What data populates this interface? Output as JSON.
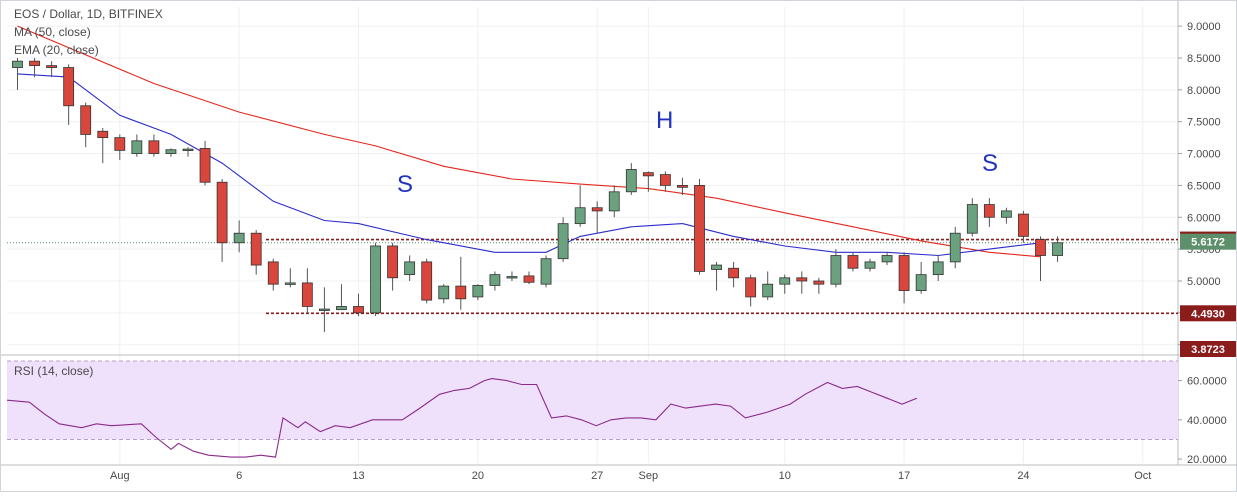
{
  "chart_data": {
    "type": "candlestick",
    "title": "EOS / Dollar, 1D, BITFINEX",
    "indicators": [
      "MA (50, close)",
      "EMA (20, close)"
    ],
    "rsi_label": "RSI (14, close)",
    "x_ticks": [
      "Aug",
      "6",
      "13",
      "20",
      "27",
      "Sep",
      "10",
      "17",
      "24",
      "Oct"
    ],
    "y_ticks": [
      "9.0000",
      "8.5000",
      "8.0000",
      "7.5000",
      "7.0000",
      "6.5000",
      "6.0000",
      "5.5000",
      "5.0000",
      "4.5000",
      "4.0000"
    ],
    "ylim": [
      3.87,
      9.3
    ],
    "rsi_ticks": [
      "60.0000",
      "40.0000",
      "20.0000"
    ],
    "rsi_lim": [
      18,
      71
    ],
    "rsi_band": [
      30,
      70
    ],
    "price_labels": [
      {
        "text": "5.6500",
        "value": 5.65,
        "color": "#8b1c1c"
      },
      {
        "text": "5.6172",
        "value": 5.6172,
        "color": "#5d8f6a"
      },
      {
        "text": "4.4930",
        "value": 4.493,
        "color": "#8b1c1c"
      },
      {
        "text": "3.8723",
        "value": 3.8723,
        "color": "#8b1c1c"
      }
    ],
    "support_levels": [
      5.65,
      4.493
    ],
    "pattern_labels": [
      "S",
      "H",
      "S"
    ],
    "candles": [
      {
        "d": "Jul 27",
        "o": 8.35,
        "h": 8.5,
        "l": 8.0,
        "c": 8.45
      },
      {
        "d": "Jul 28",
        "o": 8.45,
        "h": 8.5,
        "l": 8.2,
        "c": 8.38
      },
      {
        "d": "Jul 29",
        "o": 8.38,
        "h": 8.45,
        "l": 8.2,
        "c": 8.35
      },
      {
        "d": "Jul 30",
        "o": 8.35,
        "h": 8.4,
        "l": 7.45,
        "c": 7.75
      },
      {
        "d": "Jul 31",
        "o": 7.75,
        "h": 7.8,
        "l": 7.1,
        "c": 7.3
      },
      {
        "d": "Aug 1",
        "o": 7.35,
        "h": 7.4,
        "l": 6.85,
        "c": 7.25
      },
      {
        "d": "Aug 2",
        "o": 7.25,
        "h": 7.3,
        "l": 6.9,
        "c": 7.05
      },
      {
        "d": "Aug 3",
        "o": 7.0,
        "h": 7.3,
        "l": 6.95,
        "c": 7.2
      },
      {
        "d": "Aug 4",
        "o": 7.2,
        "h": 7.3,
        "l": 6.95,
        "c": 7.0
      },
      {
        "d": "Aug 5",
        "o": 7.0,
        "h": 7.08,
        "l": 6.95,
        "c": 7.06
      },
      {
        "d": "Aug 6",
        "o": 7.05,
        "h": 7.1,
        "l": 6.95,
        "c": 7.07
      },
      {
        "d": "Aug 7",
        "o": 7.08,
        "h": 7.2,
        "l": 6.5,
        "c": 6.55
      },
      {
        "d": "Aug 8",
        "o": 6.55,
        "h": 6.6,
        "l": 5.3,
        "c": 5.6
      },
      {
        "d": "Aug 9",
        "o": 5.6,
        "h": 5.95,
        "l": 5.45,
        "c": 5.75
      },
      {
        "d": "Aug 10",
        "o": 5.75,
        "h": 5.8,
        "l": 5.1,
        "c": 5.25
      },
      {
        "d": "Aug 11",
        "o": 5.3,
        "h": 5.35,
        "l": 4.85,
        "c": 4.95
      },
      {
        "d": "Aug 12",
        "o": 4.97,
        "h": 5.2,
        "l": 4.9,
        "c": 4.97
      },
      {
        "d": "Aug 13",
        "o": 4.97,
        "h": 5.2,
        "l": 4.5,
        "c": 4.6
      },
      {
        "d": "Aug 14",
        "o": 4.55,
        "h": 4.9,
        "l": 4.2,
        "c": 4.56
      },
      {
        "d": "Aug 15",
        "o": 4.55,
        "h": 4.95,
        "l": 4.55,
        "c": 4.6
      },
      {
        "d": "Aug 16",
        "o": 4.6,
        "h": 4.8,
        "l": 4.45,
        "c": 4.5
      },
      {
        "d": "Aug 17",
        "o": 4.5,
        "h": 5.6,
        "l": 4.45,
        "c": 5.55
      },
      {
        "d": "Aug 18",
        "o": 5.55,
        "h": 5.6,
        "l": 4.85,
        "c": 5.05
      },
      {
        "d": "Aug 19",
        "o": 5.1,
        "h": 5.4,
        "l": 5.0,
        "c": 5.3
      },
      {
        "d": "Aug 20",
        "o": 5.3,
        "h": 5.35,
        "l": 4.65,
        "c": 4.7
      },
      {
        "d": "Aug 21",
        "o": 4.72,
        "h": 4.95,
        "l": 4.65,
        "c": 4.92
      },
      {
        "d": "Aug 22",
        "o": 4.92,
        "h": 5.38,
        "l": 4.55,
        "c": 4.72
      },
      {
        "d": "Aug 23",
        "o": 4.75,
        "h": 4.95,
        "l": 4.7,
        "c": 4.93
      },
      {
        "d": "Aug 24",
        "o": 4.93,
        "h": 5.15,
        "l": 4.85,
        "c": 5.1
      },
      {
        "d": "Aug 25",
        "o": 5.05,
        "h": 5.15,
        "l": 5.0,
        "c": 5.07
      },
      {
        "d": "Aug 26",
        "o": 5.08,
        "h": 5.15,
        "l": 4.95,
        "c": 4.98
      },
      {
        "d": "Aug 27",
        "o": 4.95,
        "h": 5.4,
        "l": 4.9,
        "c": 5.35
      },
      {
        "d": "Aug 28",
        "o": 5.35,
        "h": 6.0,
        "l": 5.3,
        "c": 5.9
      },
      {
        "d": "Aug 29",
        "o": 5.9,
        "h": 6.5,
        "l": 5.85,
        "c": 6.15
      },
      {
        "d": "Aug 30",
        "o": 6.15,
        "h": 6.25,
        "l": 5.75,
        "c": 6.1
      },
      {
        "d": "Aug 31",
        "o": 6.1,
        "h": 6.5,
        "l": 6.0,
        "c": 6.4
      },
      {
        "d": "Sep 1",
        "o": 6.4,
        "h": 6.85,
        "l": 6.35,
        "c": 6.75
      },
      {
        "d": "Sep 2",
        "o": 6.7,
        "h": 6.72,
        "l": 6.4,
        "c": 6.65
      },
      {
        "d": "Sep 3",
        "o": 6.67,
        "h": 6.72,
        "l": 6.4,
        "c": 6.5
      },
      {
        "d": "Sep 4",
        "o": 6.5,
        "h": 6.62,
        "l": 6.35,
        "c": 6.47
      },
      {
        "d": "Sep 5",
        "o": 6.5,
        "h": 6.6,
        "l": 5.1,
        "c": 5.15
      },
      {
        "d": "Sep 6",
        "o": 5.18,
        "h": 5.3,
        "l": 4.85,
        "c": 5.25
      },
      {
        "d": "Sep 7",
        "o": 5.2,
        "h": 5.3,
        "l": 4.9,
        "c": 5.05
      },
      {
        "d": "Sep 8",
        "o": 5.05,
        "h": 5.1,
        "l": 4.6,
        "c": 4.75
      },
      {
        "d": "Sep 9",
        "o": 4.75,
        "h": 5.15,
        "l": 4.7,
        "c": 4.95
      },
      {
        "d": "Sep 10",
        "o": 4.95,
        "h": 5.1,
        "l": 4.8,
        "c": 5.05
      },
      {
        "d": "Sep 11",
        "o": 5.05,
        "h": 5.15,
        "l": 4.8,
        "c": 5.0
      },
      {
        "d": "Sep 12",
        "o": 5.0,
        "h": 5.05,
        "l": 4.8,
        "c": 4.95
      },
      {
        "d": "Sep 13",
        "o": 4.95,
        "h": 5.5,
        "l": 4.9,
        "c": 5.4
      },
      {
        "d": "Sep 14",
        "o": 5.4,
        "h": 5.45,
        "l": 5.15,
        "c": 5.2
      },
      {
        "d": "Sep 15",
        "o": 5.2,
        "h": 5.35,
        "l": 5.15,
        "c": 5.3
      },
      {
        "d": "Sep 16",
        "o": 5.3,
        "h": 5.45,
        "l": 5.25,
        "c": 5.4
      },
      {
        "d": "Sep 17",
        "o": 5.4,
        "h": 5.45,
        "l": 4.65,
        "c": 4.85
      },
      {
        "d": "Sep 18",
        "o": 4.85,
        "h": 5.3,
        "l": 4.8,
        "c": 5.1
      },
      {
        "d": "Sep 19",
        "o": 5.1,
        "h": 5.4,
        "l": 5.0,
        "c": 5.3
      },
      {
        "d": "Sep 20",
        "o": 5.3,
        "h": 5.85,
        "l": 5.2,
        "c": 5.75
      },
      {
        "d": "Sep 21",
        "o": 5.75,
        "h": 6.3,
        "l": 5.7,
        "c": 6.2
      },
      {
        "d": "Sep 22",
        "o": 6.2,
        "h": 6.3,
        "l": 5.85,
        "c": 6.0
      },
      {
        "d": "Sep 23",
        "o": 6.0,
        "h": 6.15,
        "l": 5.9,
        "c": 6.1
      },
      {
        "d": "Sep 24",
        "o": 6.05,
        "h": 6.1,
        "l": 5.6,
        "c": 5.7
      },
      {
        "d": "Sep 25",
        "o": 5.65,
        "h": 5.7,
        "l": 5.0,
        "c": 5.4
      },
      {
        "d": "Sep 26",
        "o": 5.4,
        "h": 5.7,
        "l": 5.3,
        "c": 5.6
      }
    ],
    "ma50": [
      [
        0,
        9.0
      ],
      [
        8,
        8.1
      ],
      [
        13,
        7.65
      ],
      [
        18,
        7.3
      ],
      [
        21,
        7.12
      ],
      [
        25,
        6.8
      ],
      [
        29,
        6.6
      ],
      [
        33,
        6.52
      ],
      [
        37,
        6.45
      ],
      [
        41,
        6.3
      ],
      [
        45,
        6.07
      ],
      [
        49,
        5.85
      ],
      [
        53,
        5.63
      ],
      [
        57,
        5.45
      ],
      [
        60,
        5.38
      ]
    ],
    "ema20": [
      [
        0,
        8.25
      ],
      [
        3,
        8.2
      ],
      [
        6,
        7.6
      ],
      [
        9,
        7.3
      ],
      [
        12,
        6.85
      ],
      [
        15,
        6.25
      ],
      [
        18,
        5.95
      ],
      [
        20,
        5.9
      ],
      [
        24,
        5.65
      ],
      [
        28,
        5.45
      ],
      [
        31,
        5.45
      ],
      [
        33,
        5.7
      ],
      [
        36,
        5.85
      ],
      [
        39,
        5.9
      ],
      [
        42,
        5.7
      ],
      [
        45,
        5.55
      ],
      [
        48,
        5.45
      ],
      [
        51,
        5.45
      ],
      [
        54,
        5.4
      ],
      [
        57,
        5.5
      ],
      [
        60,
        5.6
      ]
    ],
    "rsi": [
      [
        0,
        50
      ],
      [
        3,
        49
      ],
      [
        5,
        43
      ],
      [
        7,
        38
      ],
      [
        10,
        36
      ],
      [
        12,
        38
      ],
      [
        14,
        37
      ],
      [
        18,
        38
      ],
      [
        20,
        31
      ],
      [
        22,
        25
      ],
      [
        23,
        28
      ],
      [
        25,
        24
      ],
      [
        27,
        22
      ],
      [
        30,
        21
      ],
      [
        32,
        21
      ],
      [
        34,
        22
      ],
      [
        36,
        21
      ],
      [
        37,
        41
      ],
      [
        39,
        36
      ],
      [
        40,
        39
      ],
      [
        42,
        34
      ],
      [
        44,
        37
      ],
      [
        46,
        36
      ],
      [
        49,
        40
      ],
      [
        51,
        40
      ],
      [
        53,
        40
      ],
      [
        55,
        45
      ],
      [
        58,
        53
      ],
      [
        60,
        55
      ],
      [
        62,
        56
      ],
      [
        64,
        60
      ],
      [
        65,
        61
      ],
      [
        67,
        60
      ],
      [
        69,
        58
      ],
      [
        71,
        58
      ],
      [
        73,
        41
      ],
      [
        75,
        42
      ],
      [
        77,
        40
      ],
      [
        79,
        37
      ],
      [
        81,
        40
      ],
      [
        83,
        41
      ],
      [
        85,
        41
      ],
      [
        87,
        40
      ],
      [
        89,
        48
      ],
      [
        91,
        46
      ],
      [
        93,
        47
      ],
      [
        95,
        48
      ],
      [
        97,
        47
      ],
      [
        99,
        41
      ],
      [
        102,
        44
      ],
      [
        105,
        48
      ],
      [
        107,
        53
      ],
      [
        110,
        59
      ],
      [
        112,
        56
      ],
      [
        114,
        57
      ],
      [
        116,
        54
      ],
      [
        118,
        51
      ],
      [
        120,
        48
      ],
      [
        122,
        51
      ]
    ]
  },
  "colors": {
    "up": "#6aa27f",
    "down": "#d9463b",
    "ma": "#e3281e",
    "ema": "#2c2ccc",
    "rsi": "#8a2b8a",
    "rsi_band": "#efe0fb"
  }
}
